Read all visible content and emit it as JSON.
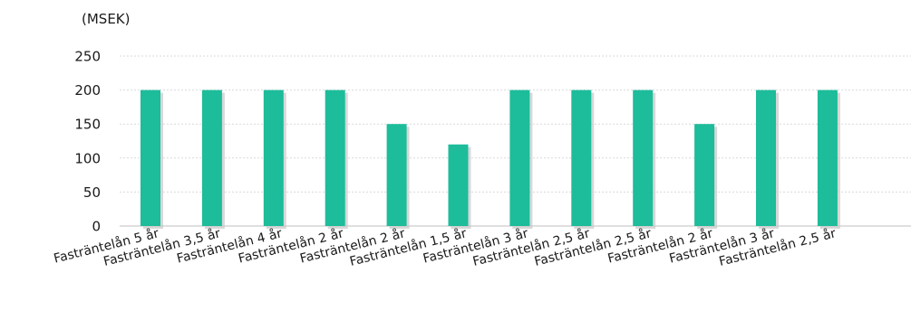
{
  "chart_data": {
    "type": "bar",
    "unit_label": "(MSEK)",
    "categories": [
      "Fasträntelån 5 år",
      "Fasträntelån 3,5 år",
      "Fasträntelån 4 år",
      "Fasträntelån 2 år",
      "Fasträntelån 2 år",
      "Fasträntelån 1,5 år",
      "Fasträntelån 3 år",
      "Fasträntelån 2,5 år",
      "Fasträntelån 2,5 år",
      "Fasträntelån 2 år",
      "Fasträntelån 3 år",
      "Fasträntelån 2,5 år"
    ],
    "values": [
      200,
      200,
      200,
      200,
      150,
      120,
      200,
      200,
      200,
      150,
      200,
      200
    ],
    "yticks": [
      0,
      50,
      100,
      150,
      200,
      250
    ],
    "ylim": [
      0,
      250
    ],
    "grid": true,
    "bar_color": "#1dbc9b"
  }
}
